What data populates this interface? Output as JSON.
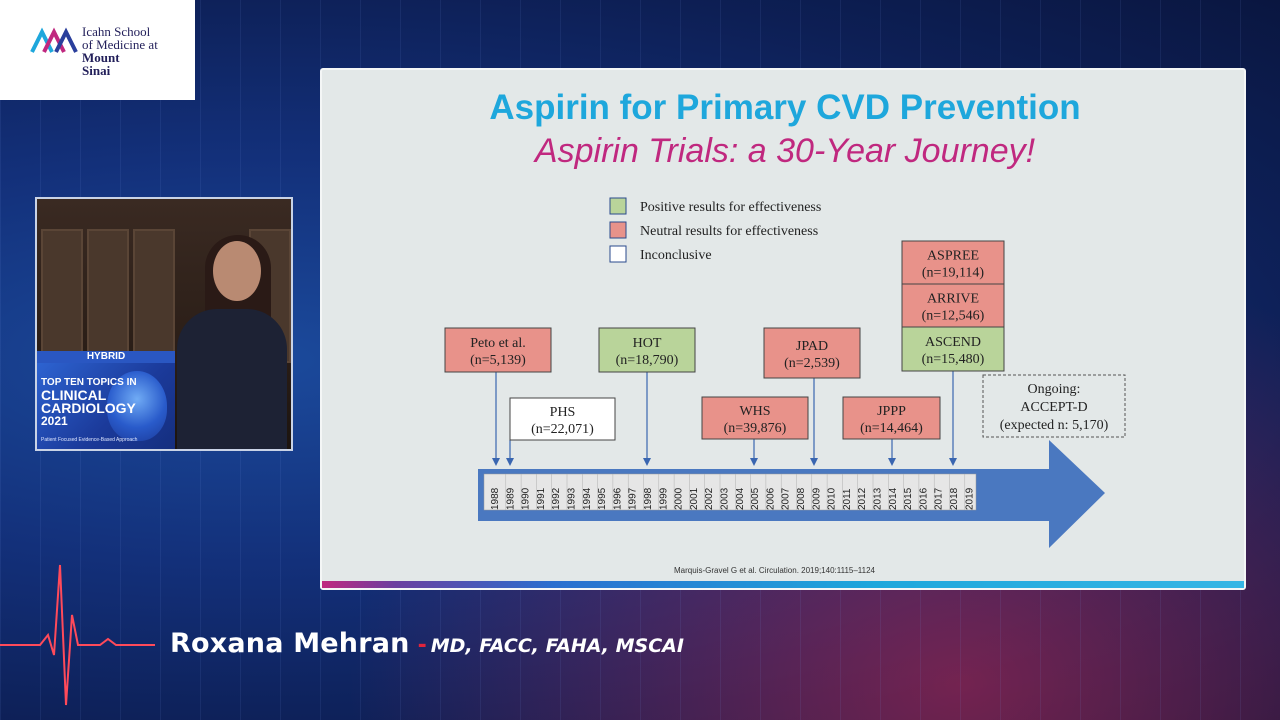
{
  "logo": {
    "line1": "Icahn School",
    "line2": "of Medicine at",
    "line3": "Mount",
    "line4": "Sinai"
  },
  "video": {
    "tag": "HYBRID",
    "title_line1": "TOP TEN TOPICS IN",
    "title_line2": "CLINICAL",
    "title_line3": "CARDIOLOGY",
    "title_line4": "2021",
    "subtitle": "Patient Focused Evidence-Based Approach"
  },
  "slide": {
    "title": "Aspirin for Primary CVD Prevention",
    "subtitle": "Aspirin Trials: a 30-Year Journey!",
    "citation": "Marquis-Gravel G et al. Circulation. 2019;140:1115–1124",
    "colors": {
      "positive_fill": "#b9d49a",
      "neutral_fill": "#e8928a",
      "inconclusive_fill": "#ffffff",
      "arrow": "#4a78c0",
      "title": "#1ea7dc",
      "subtitle": "#c0287f"
    },
    "legend": [
      {
        "label": "Positive results for effectiveness",
        "kind": "positive"
      },
      {
        "label": "Neutral results for effectiveness",
        "kind": "neutral"
      },
      {
        "label": "Inconclusive",
        "kind": "inconclusive"
      }
    ],
    "years": [
      "1988",
      "1989",
      "1990",
      "1991",
      "1992",
      "1993",
      "1994",
      "1995",
      "1996",
      "1997",
      "1998",
      "1999",
      "2000",
      "2001",
      "2002",
      "2003",
      "2004",
      "2005",
      "2006",
      "2007",
      "2008",
      "2009",
      "2010",
      "2011",
      "2012",
      "2013",
      "2014",
      "2015",
      "2016",
      "2017",
      "2018",
      "2019"
    ],
    "trials": [
      {
        "name": "Peto et al.",
        "n": "(n=5,139)",
        "kind": "neutral",
        "year": "1988"
      },
      {
        "name": "PHS",
        "n": "(n=22,071)",
        "kind": "inconclusive",
        "year": "1989"
      },
      {
        "name": "HOT",
        "n": "(n=18,790)",
        "kind": "positive",
        "year": "1998"
      },
      {
        "name": "WHS",
        "n": "(n=39,876)",
        "kind": "neutral",
        "year": "2005"
      },
      {
        "name": "JPAD",
        "n": "(n=2,539)",
        "kind": "neutral",
        "year": "2009"
      },
      {
        "name": "JPPP",
        "n": "(n=14,464)",
        "kind": "neutral",
        "year": "2014"
      },
      {
        "name": "ASPREE",
        "n": "(n=19,114)",
        "kind": "neutral",
        "year": "2018"
      },
      {
        "name": "ARRIVE",
        "n": "(n=12,546)",
        "kind": "neutral",
        "year": "2018"
      },
      {
        "name": "ASCEND",
        "n": "(n=15,480)",
        "kind": "positive",
        "year": "2018"
      }
    ],
    "ongoing": {
      "line1": "Ongoing:",
      "line2": "ACCEPT-D",
      "line3": "(expected n: 5,170)"
    }
  },
  "speaker": {
    "name": "Roxana Mehran",
    "separator": "-",
    "credentials": "MD, FACC, FAHA, MSCAI"
  }
}
